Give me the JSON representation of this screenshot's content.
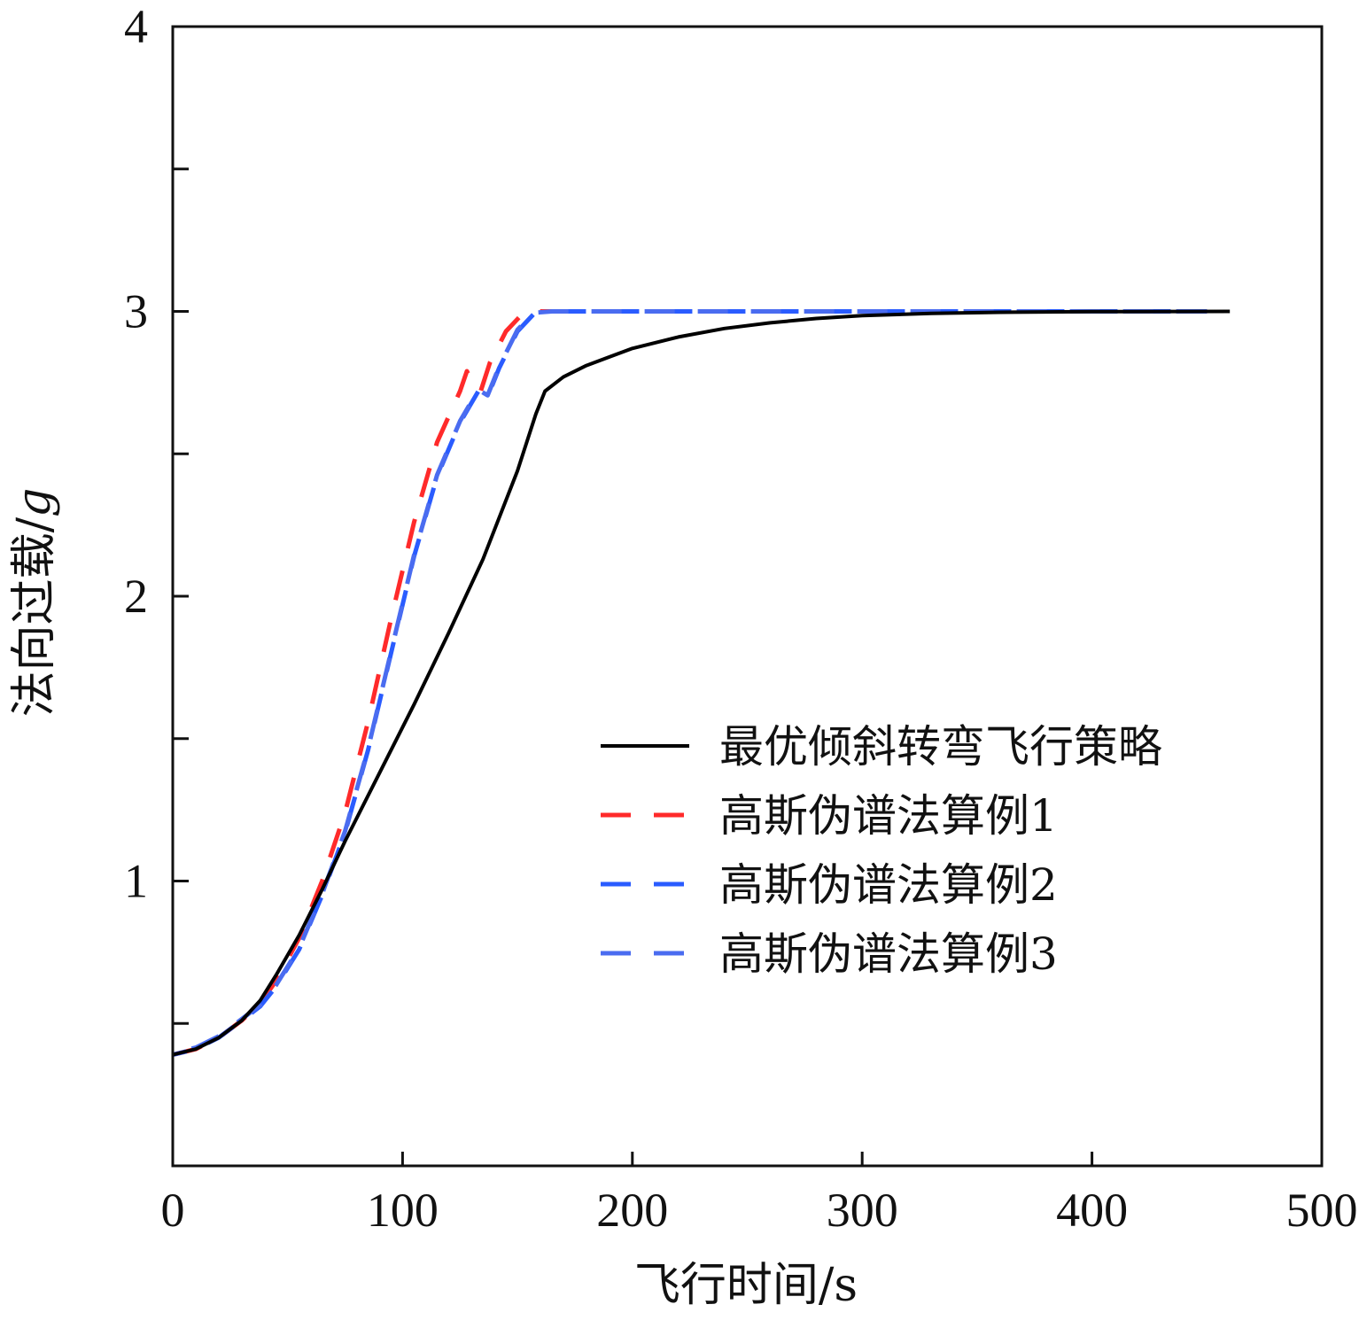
{
  "chart_data": {
    "type": "line",
    "title": "",
    "xlabel": "飞行时间/s",
    "ylabel": "法向过载/",
    "ylabel_unit": "g",
    "xlim": [
      0,
      500
    ],
    "ylim": [
      0,
      4
    ],
    "x_ticks": [
      0,
      100,
      200,
      300,
      400,
      500
    ],
    "x_tick_labels": [
      "0",
      "100",
      "200",
      "300",
      "400",
      "500"
    ],
    "y_ticks": [
      1,
      2,
      3,
      4
    ],
    "y_tick_labels": [
      "1",
      "2",
      "3",
      "4"
    ],
    "y_minor_ticks": [
      0.5,
      1.5,
      2.5,
      3.5
    ],
    "grid": false,
    "legend_position": "center-right",
    "series": [
      {
        "name": "最优倾斜转弯飞行策略",
        "color": "#000000",
        "style": "solid",
        "points": [
          [
            0,
            0.39
          ],
          [
            10,
            0.41
          ],
          [
            20,
            0.45
          ],
          [
            30,
            0.51
          ],
          [
            38,
            0.58
          ],
          [
            45,
            0.67
          ],
          [
            55,
            0.81
          ],
          [
            65,
            0.97
          ],
          [
            75,
            1.14
          ],
          [
            90,
            1.38
          ],
          [
            105,
            1.62
          ],
          [
            120,
            1.87
          ],
          [
            135,
            2.13
          ],
          [
            150,
            2.44
          ],
          [
            158,
            2.64
          ],
          [
            162,
            2.72
          ],
          [
            170,
            2.77
          ],
          [
            180,
            2.81
          ],
          [
            190,
            2.84
          ],
          [
            200,
            2.87
          ],
          [
            220,
            2.91
          ],
          [
            240,
            2.94
          ],
          [
            260,
            2.96
          ],
          [
            280,
            2.975
          ],
          [
            300,
            2.985
          ],
          [
            330,
            2.993
          ],
          [
            360,
            2.997
          ],
          [
            400,
            2.999
          ],
          [
            460,
            3.0
          ]
        ]
      },
      {
        "name": "高斯伪谱法算例1",
        "color": "#ff2a2a",
        "style": "dashed",
        "points": [
          [
            0,
            0.39
          ],
          [
            10,
            0.41
          ],
          [
            20,
            0.45
          ],
          [
            30,
            0.51
          ],
          [
            38,
            0.57
          ],
          [
            45,
            0.65
          ],
          [
            55,
            0.8
          ],
          [
            65,
            1.0
          ],
          [
            75,
            1.24
          ],
          [
            85,
            1.56
          ],
          [
            95,
            1.92
          ],
          [
            105,
            2.26
          ],
          [
            115,
            2.54
          ],
          [
            125,
            2.72
          ],
          [
            128,
            2.79
          ],
          [
            131,
            2.74
          ],
          [
            134,
            2.72
          ],
          [
            138,
            2.82
          ],
          [
            145,
            2.93
          ],
          [
            152,
            2.99
          ],
          [
            158,
            3.0
          ],
          [
            180,
            3.0
          ],
          [
            230,
            3.0
          ],
          [
            300,
            3.0
          ],
          [
            400,
            3.0
          ],
          [
            450,
            3.0
          ]
        ]
      },
      {
        "name": "高斯伪谱法算例2",
        "color": "#2a5cff",
        "style": "dashed",
        "points": [
          [
            0,
            0.39
          ],
          [
            10,
            0.41
          ],
          [
            20,
            0.45
          ],
          [
            30,
            0.51
          ],
          [
            38,
            0.56
          ],
          [
            45,
            0.63
          ],
          [
            55,
            0.76
          ],
          [
            65,
            0.95
          ],
          [
            75,
            1.17
          ],
          [
            85,
            1.46
          ],
          [
            95,
            1.8
          ],
          [
            105,
            2.14
          ],
          [
            115,
            2.42
          ],
          [
            125,
            2.61
          ],
          [
            133,
            2.72
          ],
          [
            137,
            2.7
          ],
          [
            142,
            2.8
          ],
          [
            150,
            2.93
          ],
          [
            157,
            2.99
          ],
          [
            165,
            3.0
          ],
          [
            200,
            3.0
          ],
          [
            300,
            3.0
          ],
          [
            400,
            3.0
          ],
          [
            450,
            3.0
          ]
        ]
      },
      {
        "name": "高斯伪谱法算例3",
        "color": "#4a6cf0",
        "style": "dashed",
        "points": [
          [
            0,
            0.395
          ],
          [
            10,
            0.415
          ],
          [
            20,
            0.455
          ],
          [
            30,
            0.515
          ],
          [
            38,
            0.565
          ],
          [
            45,
            0.635
          ],
          [
            55,
            0.765
          ],
          [
            65,
            0.955
          ],
          [
            75,
            1.175
          ],
          [
            85,
            1.465
          ],
          [
            95,
            1.805
          ],
          [
            105,
            2.145
          ],
          [
            115,
            2.425
          ],
          [
            125,
            2.615
          ],
          [
            133,
            2.725
          ],
          [
            137,
            2.705
          ],
          [
            142,
            2.805
          ],
          [
            150,
            2.935
          ],
          [
            157,
            2.995
          ],
          [
            165,
            3.0
          ],
          [
            200,
            3.0
          ],
          [
            300,
            3.0
          ],
          [
            400,
            3.0
          ],
          [
            450,
            3.0
          ]
        ]
      }
    ]
  }
}
